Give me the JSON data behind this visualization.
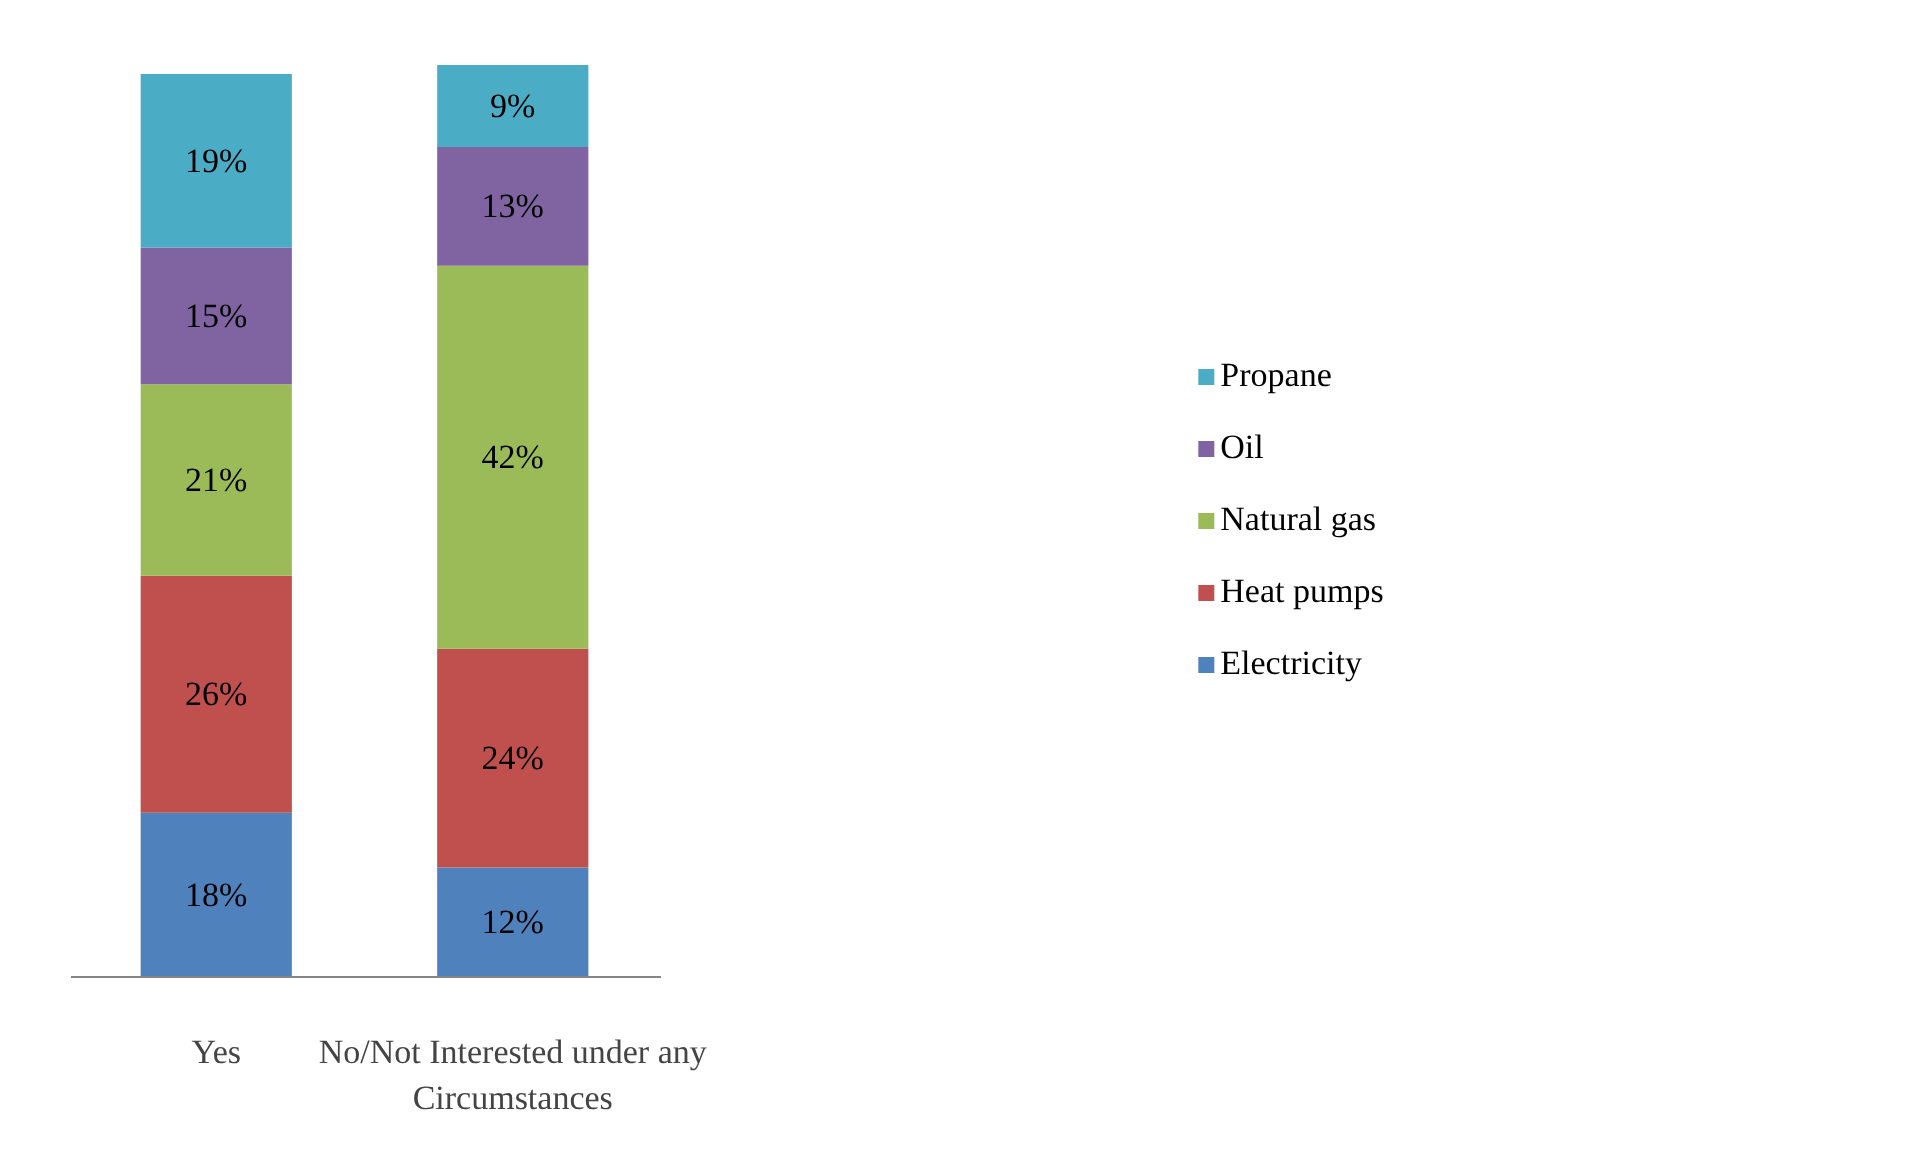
{
  "chart_data": {
    "type": "bar",
    "stacked": true,
    "categories": [
      "Yes",
      "No/Not Interested under any Circumstances"
    ],
    "series": [
      {
        "name": "Electricity",
        "color": "#4f81bd",
        "values": [
          18,
          12
        ],
        "value_labels": [
          "18%",
          "12%"
        ]
      },
      {
        "name": "Heat pumps",
        "color": "#c0504d",
        "values": [
          26,
          24
        ],
        "value_labels": [
          "26%",
          "24%"
        ]
      },
      {
        "name": "Natural gas",
        "color": "#9bbb59",
        "values": [
          21,
          42
        ],
        "value_labels": [
          "21%",
          "42%"
        ]
      },
      {
        "name": "Oil",
        "color": "#8064a2",
        "values": [
          15,
          13
        ],
        "value_labels": [
          "15%",
          "13%"
        ]
      },
      {
        "name": "Propane",
        "color": "#4bacc6",
        "values": [
          19,
          9
        ],
        "value_labels": [
          "19%",
          "9%"
        ]
      }
    ],
    "legend": "right",
    "grid": false
  }
}
